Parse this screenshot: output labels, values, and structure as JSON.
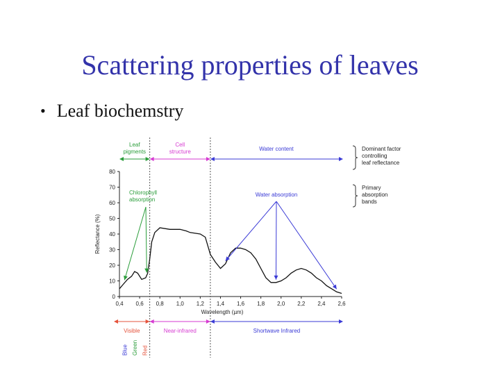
{
  "slide": {
    "title": "Scattering properties of leaves",
    "bullet": "Leaf biochemstry",
    "bullet_marker": "•"
  },
  "chart_data": {
    "type": "line",
    "ylabel": "Reflectance (%)",
    "xlabel": "Wavelength (µm)",
    "xlim": [
      0.4,
      2.6
    ],
    "ylim": [
      0,
      80
    ],
    "x_ticks": [
      "0,4",
      "0,6",
      "0,8",
      "1,0",
      "1,2",
      "1,4",
      "1,6",
      "1,8",
      "2,0",
      "2,2",
      "2,4",
      "2,6"
    ],
    "y_ticks": [
      "0",
      "10",
      "20",
      "30",
      "40",
      "50",
      "60",
      "70",
      "80"
    ],
    "grid": false,
    "series": [
      {
        "x": [
          0.4,
          0.44,
          0.48,
          0.52,
          0.55,
          0.58,
          0.62,
          0.66,
          0.68,
          0.7,
          0.72,
          0.75,
          0.8,
          0.9,
          1.0,
          1.06,
          1.1,
          1.2,
          1.25,
          1.3,
          1.35,
          1.4,
          1.45,
          1.5,
          1.55,
          1.6,
          1.65,
          1.7,
          1.75,
          1.8,
          1.85,
          1.9,
          1.95,
          2.0,
          2.05,
          2.1,
          2.15,
          2.2,
          2.25,
          2.3,
          2.35,
          2.4,
          2.45,
          2.5,
          2.55,
          2.6
        ],
        "y": [
          5,
          8,
          11,
          13,
          16,
          15,
          11,
          12,
          15,
          24,
          35,
          41,
          44,
          43,
          43,
          42,
          41,
          40,
          38,
          27,
          22,
          18,
          21,
          28,
          31,
          31,
          30,
          28,
          24,
          18,
          12,
          9,
          9,
          10,
          12,
          15,
          17,
          18,
          17,
          15,
          12,
          10,
          7,
          5,
          3,
          2
        ]
      }
    ],
    "annotations": {
      "dominant_factor": {
        "title": [
          "Dominant factor",
          "controlling",
          "leaf reflectance"
        ],
        "regions": [
          {
            "label": [
              "Leaf",
              "pigments"
            ],
            "from": 0.4,
            "to": 0.7,
            "color": "#2a9d3a"
          },
          {
            "label": [
              "Cell",
              "structure"
            ],
            "from": 0.7,
            "to": 1.3,
            "color": "#d63ad1"
          },
          {
            "label": [
              "Water content"
            ],
            "from": 1.3,
            "to": 2.6,
            "color": "#3a3ad6"
          }
        ]
      },
      "absorption": {
        "title": [
          "Primary",
          "absorption",
          "bands"
        ],
        "chlorophyll": {
          "label": [
            "Chlorophyll",
            "absorption"
          ],
          "targets": [
            0.45,
            0.67
          ],
          "color": "#2a9d3a"
        },
        "water": {
          "label": "Water absorption",
          "targets": [
            1.45,
            1.95,
            2.55
          ],
          "color": "#3a3ad6"
        }
      },
      "spectral_regions": [
        {
          "label": "Visible",
          "from": 0.4,
          "to": 0.7,
          "color": "#e5533c"
        },
        {
          "label": "Near-infrared",
          "from": 0.7,
          "to": 1.3,
          "color": "#d63ad1"
        },
        {
          "label": "Shortwave Infrared",
          "from": 1.3,
          "to": 2.6,
          "color": "#3a3ad6"
        }
      ],
      "visible_bands": [
        {
          "label": "Blue",
          "color": "#3a3ad6",
          "at": 0.45
        },
        {
          "label": "Green",
          "color": "#2a9d3a",
          "at": 0.55
        },
        {
          "label": "Red",
          "color": "#e5533c",
          "at": 0.65
        }
      ]
    }
  },
  "colors": {
    "title": "#3333aa",
    "curve": "#111111",
    "divider": "#555555"
  }
}
